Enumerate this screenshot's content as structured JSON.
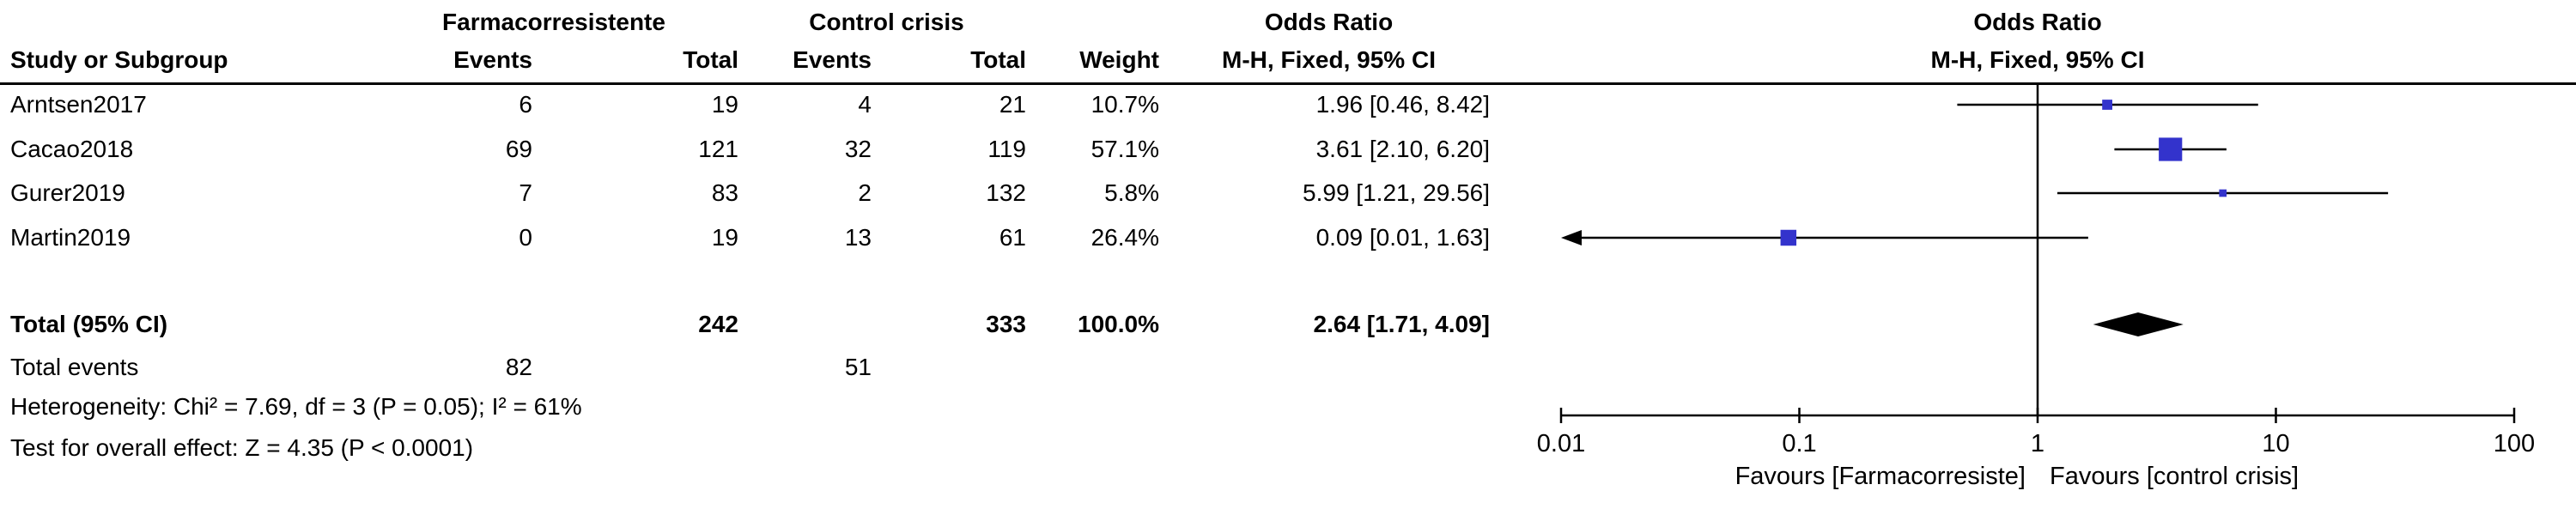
{
  "header": {
    "study_col": "Study or Subgroup",
    "group1_label": "Farmacorresistente",
    "group2_label": "Control crisis",
    "events_label": "Events",
    "total_label": "Total",
    "weight_label": "Weight",
    "or_label_text_col": "Odds Ratio",
    "or_label_plot_col": "Odds Ratio",
    "method_label_text_col": "M-H, Fixed, 95% CI",
    "method_label_plot_col": "M-H, Fixed, 95% CI"
  },
  "studies": [
    {
      "name": "Arntsen2017",
      "events1": "6",
      "total1": "19",
      "events2": "4",
      "total2": "21",
      "weight": "10.7%",
      "ci_text": "1.96 [0.46, 8.42]"
    },
    {
      "name": "Cacao2018",
      "events1": "69",
      "total1": "121",
      "events2": "32",
      "total2": "119",
      "weight": "57.1%",
      "ci_text": "3.61 [2.10, 6.20]"
    },
    {
      "name": "Gurer2019",
      "events1": "7",
      "total1": "83",
      "events2": "2",
      "total2": "132",
      "weight": "5.8%",
      "ci_text": "5.99 [1.21, 29.56]"
    },
    {
      "name": "Martin2019",
      "events1": "0",
      "total1": "19",
      "events2": "13",
      "total2": "61",
      "weight": "26.4%",
      "ci_text": "0.09 [0.01, 1.63]"
    }
  ],
  "totals": {
    "label": "Total (95% CI)",
    "total1": "242",
    "total2": "333",
    "weight": "100.0%",
    "ci_text": "2.64 [1.71, 4.09]",
    "total_events_label": "Total events",
    "events1": "82",
    "events2": "51"
  },
  "footer": {
    "heterogeneity": "Heterogeneity: Chi² = 7.69, df = 3 (P = 0.05); I² = 61%",
    "overall_effect": "Test for overall effect: Z = 4.35 (P < 0.0001)"
  },
  "chart_data": {
    "type": "forest",
    "effect_measure": "Odds Ratio, M-H, Fixed, 95% CI",
    "scale": "log10",
    "xlim": [
      0.01,
      100
    ],
    "x_ticks": [
      0.01,
      0.1,
      1,
      10,
      100
    ],
    "x_tick_labels": [
      "0.01",
      "0.1",
      "1",
      "10",
      "100"
    ],
    "null_line": 1,
    "marker_color": "#3333cc",
    "line_color": "#000000",
    "studies": [
      {
        "name": "Arntsen2017",
        "or": 1.96,
        "ci_low": 0.46,
        "ci_high": 8.42,
        "weight": 10.7,
        "arrow_low": false
      },
      {
        "name": "Cacao2018",
        "or": 3.61,
        "ci_low": 2.1,
        "ci_high": 6.2,
        "weight": 57.1,
        "arrow_low": false
      },
      {
        "name": "Gurer2019",
        "or": 5.99,
        "ci_low": 1.21,
        "ci_high": 29.56,
        "weight": 5.8,
        "arrow_low": false
      },
      {
        "name": "Martin2019",
        "or": 0.09,
        "ci_low": 0.01,
        "ci_high": 1.63,
        "weight": 26.4,
        "arrow_low": true
      }
    ],
    "total": {
      "or": 2.64,
      "ci_low": 1.71,
      "ci_high": 4.09
    },
    "favours_left": "Favours [Farmacorresiste]",
    "favours_right": "Favours [control crisis]"
  }
}
